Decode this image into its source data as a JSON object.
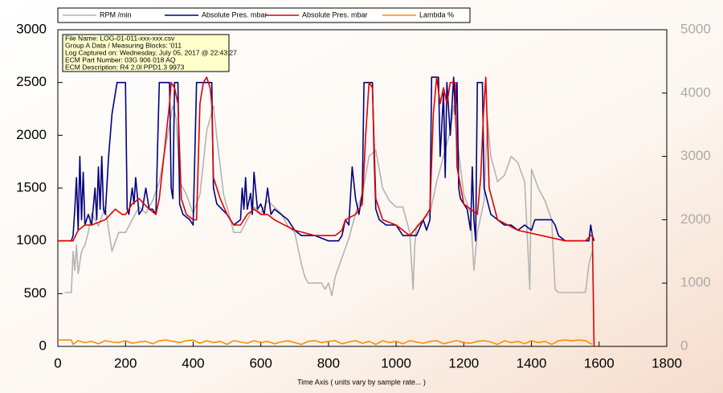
{
  "chart_data": {
    "type": "line",
    "x_label": "Time Axis ( units vary by sample rate... )",
    "info_box": [
      "File Name: LOG-01-011-xxx-xxx.csv",
      "Group A Data / Measuring Blocks: '011",
      "Log Captured on: Wednesday, July 05, 2017 @ 22:43:27",
      "ECM Part Number: 03G 906 018 AQ",
      "ECM Description: R4 2.0l PPD1.3       9973"
    ],
    "xlim": [
      0,
      1800
    ],
    "xticks": [
      0,
      200,
      400,
      600,
      800,
      1000,
      1200,
      1400,
      1600,
      1800
    ],
    "ylim": [
      0,
      3000
    ],
    "yticks": [
      0,
      500,
      1000,
      1500,
      2000,
      2500,
      3000
    ],
    "y2lim": [
      0,
      5000
    ],
    "y2ticks": [
      0,
      1000,
      2000,
      3000,
      4000,
      5000
    ],
    "series": [
      {
        "name": "RPM /min",
        "color": "#b4b4b4",
        "axis": "y2",
        "x": [
          20,
          40,
          45,
          50,
          55,
          60,
          70,
          80,
          90,
          100,
          120,
          140,
          160,
          180,
          200,
          220,
          240,
          260,
          280,
          300,
          320,
          340,
          350,
          360,
          380,
          400,
          420,
          440,
          460,
          470,
          490,
          510,
          520,
          540,
          560,
          580,
          600,
          620,
          640,
          660,
          680,
          700,
          720,
          730,
          740,
          760,
          780,
          790,
          800,
          810,
          820,
          840,
          860,
          880,
          900,
          920,
          940,
          960,
          980,
          1000,
          1020,
          1040,
          1050,
          1055,
          1060,
          1080,
          1100,
          1120,
          1140,
          1160,
          1170,
          1180,
          1200,
          1220,
          1230,
          1240,
          1260,
          1270,
          1280,
          1300,
          1320,
          1340,
          1360,
          1380,
          1390,
          1395,
          1400,
          1420,
          1440,
          1460,
          1470,
          1480,
          1540,
          1560,
          1570,
          1580
        ],
        "values": [
          850,
          850,
          1500,
          1200,
          1600,
          1150,
          1500,
          1600,
          1800,
          2100,
          1900,
          2200,
          1500,
          1800,
          1800,
          2000,
          2200,
          2100,
          2300,
          2600,
          3200,
          3800,
          3600,
          2600,
          2400,
          2100,
          2400,
          3400,
          3800,
          3300,
          2400,
          2000,
          1800,
          1800,
          2000,
          2200,
          2100,
          2300,
          2200,
          2100,
          1900,
          1800,
          1300,
          1100,
          1000,
          1000,
          1000,
          900,
          1000,
          800,
          1100,
          1400,
          1700,
          2100,
          2400,
          3000,
          3100,
          2500,
          2300,
          2200,
          2200,
          1800,
          900,
          1600,
          1900,
          2000,
          2100,
          2600,
          3000,
          3400,
          3800,
          3300,
          2400,
          2100,
          1200,
          1800,
          2300,
          3600,
          3000,
          2600,
          2700,
          3000,
          2900,
          2600,
          1500,
          900,
          2800,
          2500,
          2300,
          2000,
          900,
          850,
          850,
          850,
          1300,
          1500
        ]
      },
      {
        "name": "Absolute Pres. mbar",
        "color": "#000080",
        "axis": "y",
        "x": [
          0,
          40,
          45,
          50,
          55,
          60,
          65,
          70,
          75,
          80,
          90,
          100,
          110,
          115,
          120,
          125,
          130,
          135,
          140,
          150,
          160,
          170,
          175,
          200,
          205,
          210,
          220,
          225,
          230,
          240,
          250,
          260,
          270,
          280,
          290,
          295,
          300,
          330,
          335,
          340,
          345,
          355,
          360,
          370,
          390,
          400,
          410,
          455,
          460,
          470,
          500,
          520,
          540,
          545,
          550,
          555,
          560,
          570,
          575,
          580,
          590,
          600,
          610,
          620,
          630,
          640,
          660,
          680,
          700,
          720,
          760,
          800,
          830,
          840,
          850,
          860,
          870,
          880,
          890,
          900,
          905,
          930,
          935,
          940,
          950,
          970,
          1000,
          1020,
          1060,
          1080,
          1090,
          1100,
          1105,
          1125,
          1130,
          1140,
          1145,
          1150,
          1160,
          1170,
          1175,
          1180,
          1185,
          1190,
          1200,
          1210,
          1220,
          1225,
          1230,
          1235,
          1240,
          1255,
          1260,
          1280,
          1300,
          1320,
          1340,
          1360,
          1380,
          1400,
          1410,
          1430,
          1460,
          1470,
          1480,
          1500,
          1560,
          1570,
          1575,
          1580,
          1585
        ],
        "values": [
          1000,
          1000,
          1050,
          1300,
          1600,
          1100,
          1800,
          1200,
          1650,
          1150,
          1250,
          1150,
          1500,
          1200,
          1700,
          1300,
          1800,
          1300,
          1250,
          1800,
          2200,
          2400,
          2500,
          2500,
          1300,
          1250,
          1500,
          1350,
          1600,
          1250,
          1300,
          1500,
          1300,
          1300,
          1250,
          1900,
          2500,
          2500,
          1500,
          1400,
          2500,
          2500,
          1350,
          1250,
          1200,
          1150,
          2500,
          2500,
          1500,
          1350,
          1250,
          1150,
          1200,
          1500,
          1300,
          1600,
          1300,
          1450,
          1250,
          1650,
          1300,
          1350,
          1250,
          1500,
          1250,
          1300,
          1250,
          1200,
          1100,
          1050,
          1050,
          1000,
          1000,
          1050,
          1200,
          1150,
          1700,
          1400,
          1250,
          1450,
          2500,
          2500,
          1800,
          1300,
          1200,
          1150,
          1150,
          1050,
          1050,
          1200,
          1100,
          1200,
          2550,
          2550,
          1800,
          2400,
          1600,
          2500,
          2000,
          2550,
          2200,
          2500,
          1500,
          1400,
          1350,
          1300,
          1100,
          1700,
          1200,
          1000,
          2500,
          2500,
          1500,
          1250,
          1200,
          1150,
          1150,
          1100,
          1150,
          1100,
          1200,
          1200,
          1200,
          1150,
          1050,
          1000,
          1000,
          1000,
          1150,
          1050,
          1000
        ]
      },
      {
        "name": "Absolute Pres. mbar",
        "color": "#e00000",
        "axis": "y",
        "x": [
          0,
          45,
          60,
          80,
          100,
          140,
          170,
          190,
          200,
          210,
          220,
          240,
          270,
          290,
          300,
          320,
          330,
          335,
          345,
          355,
          365,
          380,
          400,
          410,
          420,
          430,
          440,
          450,
          455,
          460,
          480,
          500,
          520,
          540,
          560,
          580,
          600,
          620,
          640,
          700,
          760,
          820,
          840,
          850,
          880,
          900,
          910,
          920,
          930,
          940,
          960,
          1000,
          1040,
          1080,
          1100,
          1110,
          1120,
          1130,
          1140,
          1150,
          1160,
          1175,
          1180,
          1200,
          1240,
          1250,
          1258,
          1265,
          1275,
          1300,
          1360,
          1500,
          1560,
          1575,
          1580,
          1585
        ],
        "values": [
          1000,
          1000,
          1100,
          1150,
          1150,
          1200,
          1300,
          1250,
          1250,
          1300,
          1350,
          1400,
          1300,
          1250,
          1400,
          2000,
          2300,
          2500,
          2450,
          2300,
          1400,
          1250,
          1200,
          1200,
          2300,
          2500,
          2550,
          2450,
          2300,
          1600,
          1400,
          1250,
          1150,
          1150,
          1250,
          1300,
          1250,
          1250,
          1200,
          1100,
          1050,
          1050,
          1100,
          1200,
          1250,
          1350,
          2000,
          2500,
          2450,
          1400,
          1200,
          1150,
          1050,
          1200,
          1300,
          2200,
          2550,
          2300,
          2450,
          2300,
          2500,
          2500,
          1700,
          1350,
          1250,
          1600,
          2200,
          2550,
          1500,
          1200,
          1100,
          1000,
          1000,
          1050,
          1050,
          0
        ]
      },
      {
        "name": "Lambda %",
        "color": "#ff8c00",
        "axis": "y2",
        "x": [
          0,
          40,
          45,
          60,
          80,
          100,
          120,
          140,
          160,
          180,
          200,
          220,
          240,
          260,
          280,
          300,
          320,
          340,
          360,
          380,
          400,
          420,
          440,
          460,
          480,
          500,
          520,
          540,
          560,
          580,
          600,
          620,
          640,
          660,
          680,
          700,
          720,
          740,
          760,
          780,
          800,
          820,
          840,
          860,
          880,
          900,
          920,
          940,
          960,
          980,
          1000,
          1020,
          1040,
          1060,
          1080,
          1100,
          1120,
          1140,
          1160,
          1180,
          1200,
          1220,
          1240,
          1260,
          1280,
          1300,
          1320,
          1340,
          1360,
          1380,
          1400,
          1420,
          1440,
          1460,
          1480,
          1500,
          1520,
          1540,
          1560,
          1580
        ],
        "values": [
          100,
          100,
          30,
          90,
          60,
          80,
          40,
          90,
          70,
          60,
          90,
          50,
          70,
          80,
          40,
          90,
          100,
          80,
          60,
          90,
          100,
          50,
          90,
          60,
          80,
          30,
          90,
          70,
          50,
          90,
          60,
          80,
          40,
          70,
          90,
          60,
          30,
          80,
          90,
          60,
          80,
          90,
          40,
          70,
          90,
          50,
          80,
          30,
          90,
          60,
          80,
          40,
          90,
          70,
          50,
          80,
          90,
          40,
          70,
          90,
          60,
          50,
          80,
          90,
          70,
          30,
          90,
          60,
          80,
          40,
          90,
          60,
          80,
          30,
          90,
          100,
          90,
          100,
          90,
          30
        ]
      }
    ]
  }
}
